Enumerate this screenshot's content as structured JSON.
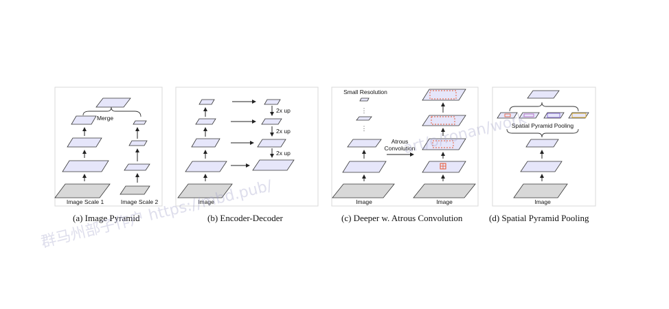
{
  "panels": {
    "a": {
      "caption": "(a) Image Pyramid",
      "merge_label": "Merge",
      "scale1_label": "Image Scale 1",
      "scale2_label": "Image Scale 2"
    },
    "b": {
      "caption": "(b) Encoder-Decoder",
      "image_label": "Image",
      "up_labels": [
        "2x up",
        "2x up",
        "2x up"
      ]
    },
    "c": {
      "caption": "(c) Deeper w. Atrous Convolution",
      "small_res_label": "Small Resolution",
      "atrous_label_1": "Atrous",
      "atrous_label_2": "Convolution",
      "image_label_left": "Image",
      "image_label_right": "Image"
    },
    "d": {
      "caption": "(d) Spatial Pyramid Pooling",
      "spp_label": "Spatial Pyramid Pooling",
      "image_label": "Image"
    }
  },
  "watermark": {
    "line1": "群马州部子作户 https://mbd.pub/",
    "line2": "art/o/ronan/work"
  },
  "colors": {
    "feature_fill": "#e6e6fa",
    "image_fill": "#d8d8d8",
    "stroke": "#333333",
    "atrous_red": "#e8522a",
    "atrous_yellow": "#e0b020",
    "panel_border": "#d8d8d8"
  }
}
